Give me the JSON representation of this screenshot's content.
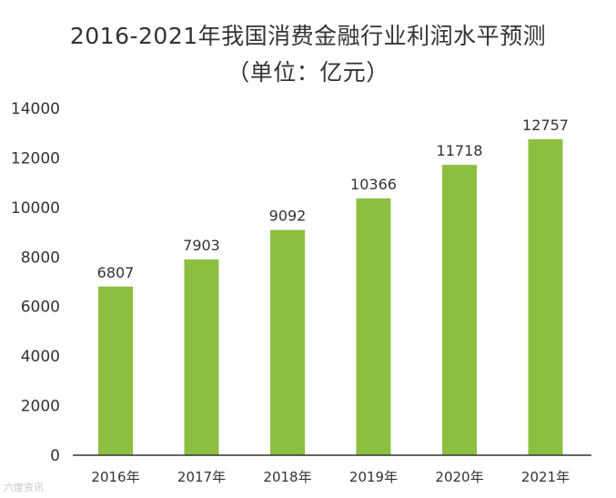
{
  "chart_data": {
    "type": "bar",
    "title": "2016-2021年我国消费金融行业利润水平预测",
    "subtitle": "（单位：亿元）",
    "categories": [
      "2016年",
      "2017年",
      "2018年",
      "2019年",
      "2020年",
      "2021年"
    ],
    "values": [
      6807,
      7903,
      9092,
      10366,
      11718,
      12757
    ],
    "yticks": [
      0,
      2000,
      4000,
      6000,
      8000,
      10000,
      12000,
      14000
    ],
    "ylim": [
      0,
      14000
    ],
    "grid": false,
    "bar_color": "#8cbf40"
  },
  "watermark": "六度资讯"
}
